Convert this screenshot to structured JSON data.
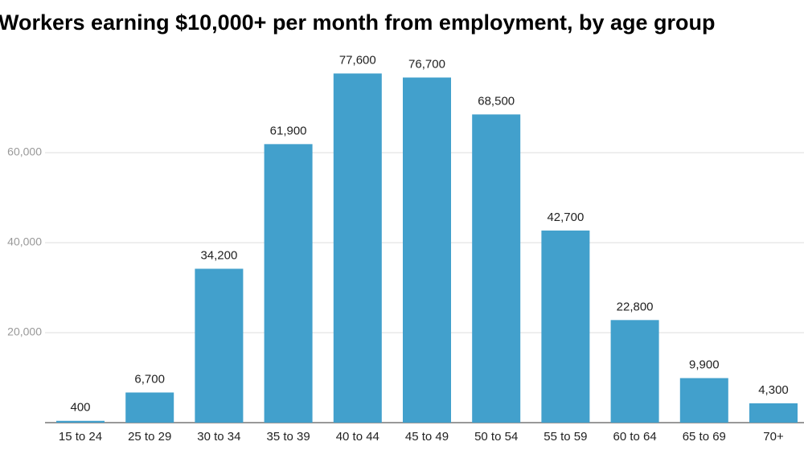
{
  "chart_data": {
    "type": "bar",
    "title": "Workers earning $10,000+ per month from employment, by age group",
    "categories": [
      "15 to 24",
      "25 to 29",
      "30 to 34",
      "35 to 39",
      "40 to 44",
      "45 to 49",
      "50 to 54",
      "55 to 59",
      "60 to 64",
      "65 to 69",
      "70+"
    ],
    "values": [
      400,
      6700,
      34200,
      61900,
      77600,
      76700,
      68500,
      42700,
      22800,
      9900,
      4300
    ],
    "value_labels": [
      "400",
      "6,700",
      "34,200",
      "61,900",
      "77,600",
      "76,700",
      "68,500",
      "42,700",
      "22,800",
      "9,900",
      "4,300"
    ],
    "color": "#42a0cc",
    "ylim": [
      0,
      80000
    ],
    "yticks": [
      {
        "value": 20000,
        "label": "20,000"
      },
      {
        "value": 40000,
        "label": "40,000"
      },
      {
        "value": 60000,
        "label": "60,000"
      }
    ],
    "grid": true
  }
}
